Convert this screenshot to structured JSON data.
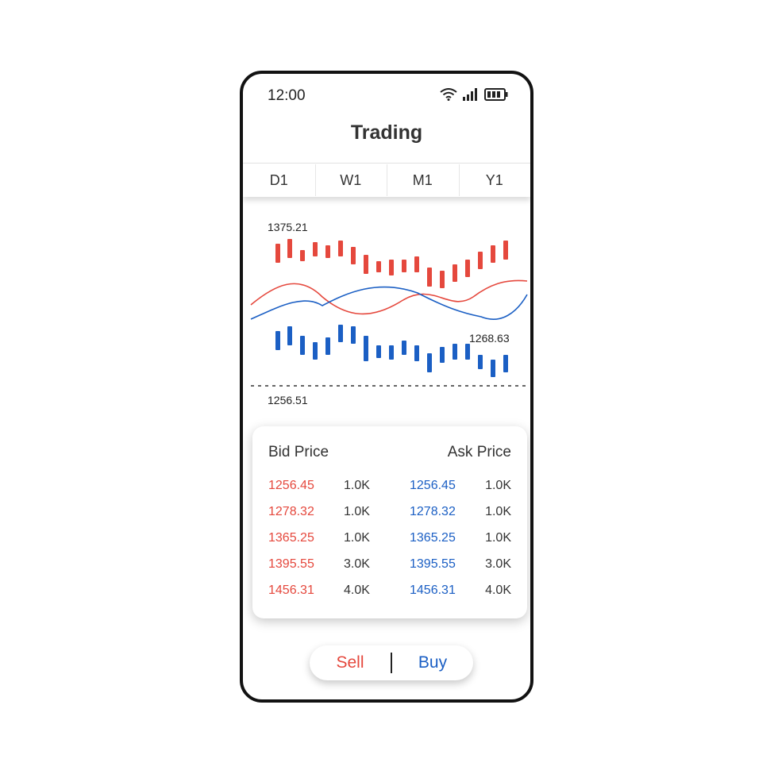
{
  "status": {
    "time": "12:00"
  },
  "header": {
    "title": "Trading"
  },
  "tabs": [
    {
      "label": "D1"
    },
    {
      "label": "W1"
    },
    {
      "label": "M1"
    },
    {
      "label": "Y1"
    }
  ],
  "chart": {
    "high_label": "1375.21",
    "current_label": "1268.63",
    "low_label": "1256.51",
    "up_color": "#e5483d",
    "down_color": "#1b5fc4"
  },
  "order_book": {
    "bid_header": "Bid Price",
    "ask_header": "Ask Price",
    "rows": [
      {
        "bid": "1256.45",
        "bid_vol": "1.0K",
        "ask": "1256.45",
        "ask_vol": "1.0K"
      },
      {
        "bid": "1278.32",
        "bid_vol": "1.0K",
        "ask": "1278.32",
        "ask_vol": "1.0K"
      },
      {
        "bid": "1365.25",
        "bid_vol": "1.0K",
        "ask": "1365.25",
        "ask_vol": "1.0K"
      },
      {
        "bid": "1395.55",
        "bid_vol": "3.0K",
        "ask": "1395.55",
        "ask_vol": "3.0K"
      },
      {
        "bid": "1456.31",
        "bid_vol": "4.0K",
        "ask": "1456.31",
        "ask_vol": "4.0K"
      }
    ]
  },
  "actions": {
    "sell_label": "Sell",
    "buy_label": "Buy"
  }
}
